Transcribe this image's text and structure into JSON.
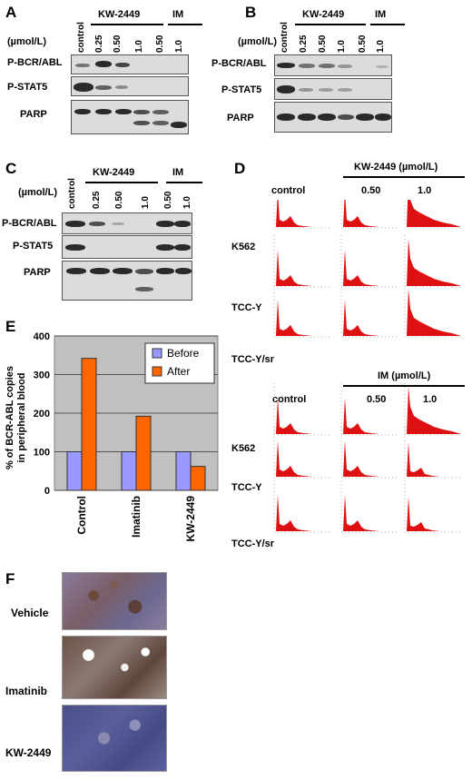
{
  "panelA": {
    "label": "A",
    "unit": "(µmol/L)",
    "group_kw": "KW-2449",
    "group_im": "IM",
    "lanes": [
      "control",
      "0.25",
      "0.50",
      "1.0",
      "0.50",
      "1.0"
    ],
    "rows": [
      "P-BCR/ABL",
      "P-STAT5",
      "PARP"
    ]
  },
  "panelB": {
    "label": "B",
    "unit": "(µmol/L)",
    "group_kw": "KW-2449",
    "group_im": "IM",
    "lanes": [
      "control",
      "0.25",
      "0.50",
      "1.0",
      "0.50",
      "1.0"
    ],
    "rows": [
      "P-BCR/ABL",
      "P-STAT5",
      "PARP"
    ]
  },
  "panelC": {
    "label": "C",
    "unit": "(µmol/L)",
    "group_kw": "KW-2449",
    "group_im": "IM",
    "lanes": [
      "control",
      "0.25",
      "0.50",
      "1.0",
      "0.50",
      "1.0"
    ],
    "rows": [
      "P-BCR/ABL",
      "P-STAT5",
      "PARP"
    ]
  },
  "panelD": {
    "label": "D",
    "kw_header": "KW-2449 (µmol/L)",
    "im_header": "IM (µmol/L)",
    "col_control": "control",
    "col_050": "0.50",
    "col_10": "1.0",
    "cells": [
      "K562",
      "TCC-Y",
      "TCC-Y/sr"
    ],
    "histogram_color": "#dd1111"
  },
  "panelE": {
    "label": "E",
    "chart_data": {
      "type": "bar",
      "categories": [
        "Control",
        "Imatinib",
        "KW-2449"
      ],
      "series": [
        {
          "name": "Before",
          "values": [
            100,
            100,
            100
          ],
          "color": "#9999ff"
        },
        {
          "name": "After",
          "values": [
            342,
            192,
            62
          ],
          "color": "#ff6600"
        }
      ],
      "ylabel_line1": "% of BCR-ABL copies",
      "ylabel_line2": "in peripheral blood",
      "ylim": [
        0,
        400
      ],
      "yticks": [
        "0",
        "100",
        "200",
        "300",
        "400"
      ],
      "grid": true,
      "legend": "top-right"
    }
  },
  "panelF": {
    "label": "F",
    "treatments": [
      "Vehicle",
      "Imatinib",
      "KW-2449"
    ]
  }
}
